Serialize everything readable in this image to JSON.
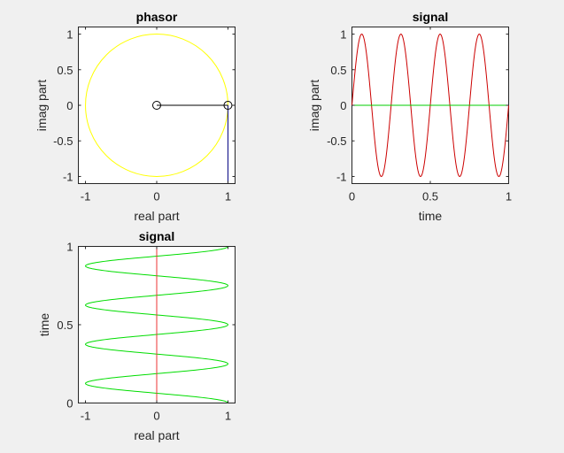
{
  "chart_data": [
    {
      "type": "line",
      "title": "phasor",
      "xlabel": "real part",
      "ylabel": "imag part",
      "xlim": [
        -1.1,
        1.1
      ],
      "ylim": [
        -1.1,
        1.1
      ],
      "xticks": [
        -1,
        0,
        1
      ],
      "xticklabels": [
        "-1",
        "0",
        "1"
      ],
      "yticks": [
        -1,
        -0.5,
        0,
        0.5,
        1
      ],
      "yticklabels": [
        "-1",
        "-0.5",
        "0",
        "0.5",
        "1"
      ],
      "grid": false,
      "unit_circle": {
        "center": [
          0,
          0
        ],
        "radius": 1,
        "color": "#ffff00"
      },
      "phasor_line": {
        "x": [
          0,
          1
        ],
        "y": [
          0,
          0
        ],
        "color": "#000000"
      },
      "markers": [
        {
          "x": 0,
          "y": 0
        },
        {
          "x": 1,
          "y": 0
        }
      ],
      "projection_line": {
        "x": [
          1,
          1
        ],
        "y": [
          0,
          -1.1
        ],
        "color": "#000080"
      }
    },
    {
      "type": "line",
      "title": "signal",
      "xlabel": "time",
      "ylabel": "imag part",
      "xlim": [
        0,
        1
      ],
      "ylim": [
        -1.1,
        1.1
      ],
      "xticks": [
        0,
        0.5,
        1
      ],
      "xticklabels": [
        "0",
        "0.5",
        "1"
      ],
      "yticks": [
        -1,
        -0.5,
        0,
        0.5,
        1
      ],
      "yticklabels": [
        "-1",
        "-0.5",
        "0",
        "0.5",
        "1"
      ],
      "grid": false,
      "series": [
        {
          "function": "sin",
          "amplitude": 1,
          "frequency": 4,
          "color": "#cc0000"
        },
        {
          "function": "constant",
          "value": 0,
          "color": "#00cc00"
        }
      ]
    },
    {
      "type": "line",
      "title": "signal",
      "xlabel": "real part",
      "ylabel": "time",
      "xlim": [
        -1.1,
        1.1
      ],
      "ylim": [
        0,
        1
      ],
      "xticks": [
        -1,
        0,
        1
      ],
      "xticklabels": [
        "-1",
        "0",
        "1"
      ],
      "yticks": [
        0,
        0.5,
        1
      ],
      "yticklabels": [
        "0",
        "0.5",
        "1"
      ],
      "grid": false,
      "series": [
        {
          "function": "cos",
          "amplitude": 1,
          "frequency": 4,
          "color": "#00dd00",
          "axis": "real-vs-time"
        },
        {
          "function": "constant",
          "value": 0,
          "color": "#ee3333",
          "axis": "real-vs-time"
        }
      ]
    }
  ]
}
